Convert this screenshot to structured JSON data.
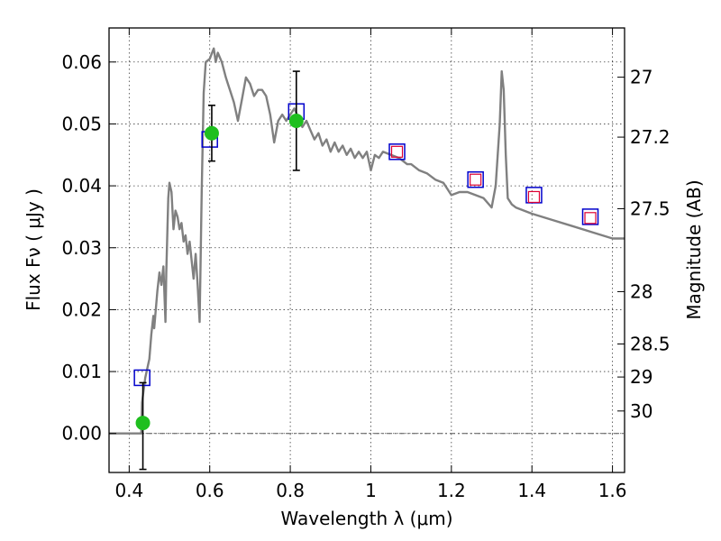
{
  "chart_data": {
    "type": "line",
    "xlabel": "Wavelength  λ (μm)",
    "ylabel": "Flux  Fν  ( μJy )",
    "ylabel2": "Magnitude (AB)",
    "xlim": [
      0.35,
      1.63
    ],
    "ylim": [
      -0.0063,
      0.0655
    ],
    "grid": true,
    "x_ticks": [
      {
        "value": 0.4,
        "label": "0.4"
      },
      {
        "value": 0.6,
        "label": "0.6"
      },
      {
        "value": 0.8,
        "label": "0.8"
      },
      {
        "value": 1.0,
        "label": "1"
      },
      {
        "value": 1.2,
        "label": "1.2"
      },
      {
        "value": 1.4,
        "label": "1.4"
      },
      {
        "value": 1.6,
        "label": "1.6"
      }
    ],
    "y_ticks": [
      {
        "value": 0.0,
        "label": "0.00"
      },
      {
        "value": 0.01,
        "label": "0.01"
      },
      {
        "value": 0.02,
        "label": "0.02"
      },
      {
        "value": 0.03,
        "label": "0.03"
      },
      {
        "value": 0.04,
        "label": "0.04"
      },
      {
        "value": 0.05,
        "label": "0.05"
      },
      {
        "value": 0.06,
        "label": "0.06"
      }
    ],
    "mag_ticks": [
      {
        "value": 27,
        "label": "27"
      },
      {
        "value": 27.2,
        "label": "27.2"
      },
      {
        "value": 27.5,
        "label": "27.5"
      },
      {
        "value": 28,
        "label": "28"
      },
      {
        "value": 28.5,
        "label": "28.5"
      },
      {
        "value": 29,
        "label": "29"
      },
      {
        "value": 30,
        "label": "30"
      }
    ],
    "colors": {
      "spectrum": "#808080",
      "observed_points": "#1fbf1f",
      "model_boxes_outer": "#0000cc",
      "model_boxes_inner": "#dd0033",
      "error_bars": "#000000",
      "zero_line": "#555555"
    },
    "series": [
      {
        "type": "line",
        "x": [
          0.35,
          0.43,
          0.432,
          0.44,
          0.45,
          0.455,
          0.46,
          0.462,
          0.47,
          0.475,
          0.48,
          0.485,
          0.49,
          0.492,
          0.497,
          0.5,
          0.505,
          0.51,
          0.515,
          0.52,
          0.525,
          0.53,
          0.535,
          0.54,
          0.545,
          0.55,
          0.555,
          0.56,
          0.565,
          0.57,
          0.575,
          0.58,
          0.585,
          0.59,
          0.6,
          0.61,
          0.615,
          0.62,
          0.63,
          0.64,
          0.645,
          0.65,
          0.66,
          0.67,
          0.68,
          0.69,
          0.7,
          0.71,
          0.72,
          0.73,
          0.74,
          0.75,
          0.76,
          0.77,
          0.78,
          0.79,
          0.8,
          0.81,
          0.82,
          0.83,
          0.84,
          0.85,
          0.86,
          0.87,
          0.88,
          0.89,
          0.9,
          0.91,
          0.92,
          0.93,
          0.94,
          0.95,
          0.96,
          0.97,
          0.98,
          0.99,
          1.0,
          1.01,
          1.02,
          1.03,
          1.05,
          1.07,
          1.09,
          1.1,
          1.12,
          1.14,
          1.16,
          1.18,
          1.19,
          1.2,
          1.22,
          1.24,
          1.26,
          1.28,
          1.3,
          1.31,
          1.32,
          1.325,
          1.33,
          1.335,
          1.34,
          1.35,
          1.36,
          1.4,
          1.45,
          1.5,
          1.55,
          1.6,
          1.63
        ],
        "y": [
          0.0,
          0.0,
          0.005,
          0.009,
          0.012,
          0.016,
          0.019,
          0.017,
          0.023,
          0.026,
          0.024,
          0.027,
          0.018,
          0.026,
          0.038,
          0.0405,
          0.039,
          0.033,
          0.036,
          0.035,
          0.033,
          0.034,
          0.031,
          0.032,
          0.029,
          0.031,
          0.028,
          0.025,
          0.029,
          0.024,
          0.018,
          0.039,
          0.055,
          0.06,
          0.0605,
          0.0622,
          0.06,
          0.0615,
          0.06,
          0.0575,
          0.0565,
          0.0555,
          0.0535,
          0.0505,
          0.054,
          0.0575,
          0.0565,
          0.0545,
          0.0555,
          0.0555,
          0.0545,
          0.0515,
          0.047,
          0.0505,
          0.0515,
          0.0505,
          0.0515,
          0.0525,
          0.051,
          0.0495,
          0.0505,
          0.049,
          0.0475,
          0.0485,
          0.0465,
          0.0475,
          0.0455,
          0.047,
          0.0455,
          0.0465,
          0.045,
          0.046,
          0.0445,
          0.0455,
          0.0445,
          0.0455,
          0.0425,
          0.045,
          0.0445,
          0.0455,
          0.045,
          0.0445,
          0.0435,
          0.0435,
          0.0425,
          0.042,
          0.041,
          0.0405,
          0.0395,
          0.0385,
          0.039,
          0.039,
          0.0385,
          0.038,
          0.0365,
          0.04,
          0.05,
          0.0585,
          0.0555,
          0.045,
          0.038,
          0.037,
          0.0365,
          0.0355,
          0.0345,
          0.0335,
          0.0325,
          0.0315,
          0.0315
        ]
      },
      {
        "type": "scatter",
        "x": [
          0.434,
          0.605,
          0.815
        ],
        "y": [
          0.0017,
          0.0485,
          0.0505
        ],
        "yerr": [
          [
            0.0075,
            0.0065
          ],
          [
            0.0045,
            0.0045
          ],
          [
            0.008,
            0.008
          ]
        ]
      },
      {
        "type": "scatter",
        "x": [
          0.432,
          0.6,
          0.815,
          1.065,
          1.26,
          1.405,
          1.545
        ],
        "y": [
          0.009,
          0.0475,
          0.052,
          0.0455,
          0.041,
          0.0385,
          0.035
        ]
      },
      {
        "type": "scatter",
        "x": [
          1.065,
          1.26,
          1.405,
          1.545
        ],
        "y": [
          0.0455,
          0.041,
          0.0382,
          0.0348
        ]
      }
    ]
  }
}
